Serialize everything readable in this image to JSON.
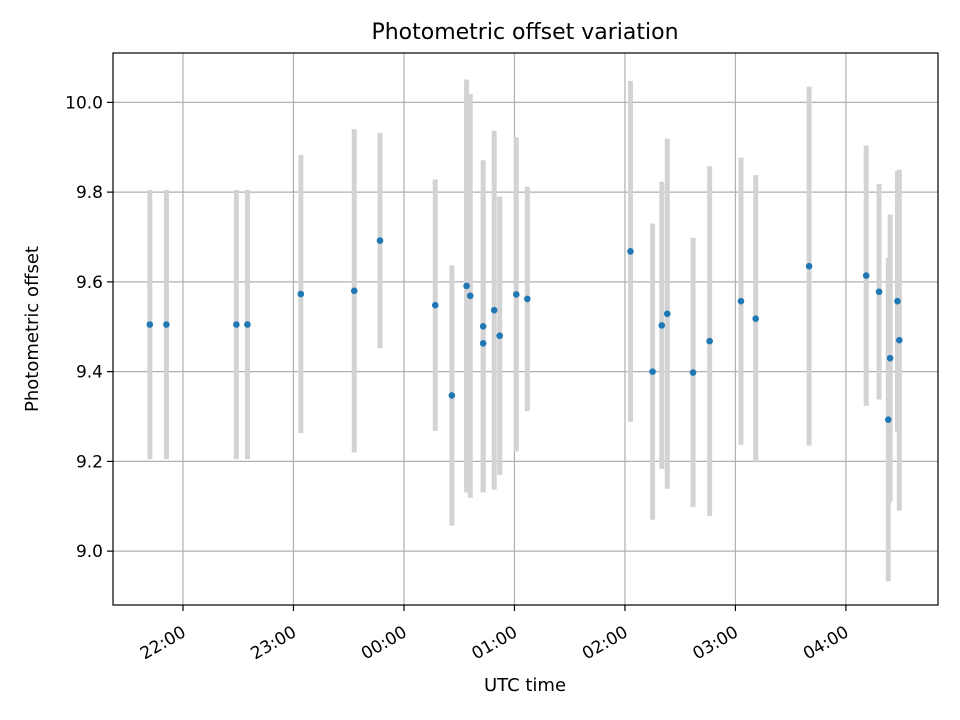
{
  "chart_data": {
    "type": "scatter",
    "title": "Photometric offset variation",
    "xlabel": "UTC time",
    "ylabel": "Photometric offset",
    "x_tick_labels": [
      "22:00",
      "23:00",
      "00:00",
      "01:00",
      "02:00",
      "03:00",
      "04:00"
    ],
    "y_tick_labels": [
      "9.0",
      "9.2",
      "9.4",
      "9.6",
      "9.8",
      "10.0"
    ],
    "y_ticks": [
      9.0,
      9.2,
      9.4,
      9.6,
      9.8,
      10.0
    ],
    "xlim": [
      "21:22",
      "04:50"
    ],
    "ylim": [
      8.88,
      10.11
    ],
    "grid": true,
    "marker_color": "#1f77b4",
    "errorbar_color": "#d3d3d3",
    "series": [
      {
        "points": [
          {
            "time": "21:42",
            "y": 9.505,
            "err": 0.3
          },
          {
            "time": "21:51",
            "y": 9.505,
            "err": 0.3
          },
          {
            "time": "22:29",
            "y": 9.505,
            "err": 0.3
          },
          {
            "time": "22:35",
            "y": 9.505,
            "err": 0.3
          },
          {
            "time": "23:04",
            "y": 9.573,
            "err": 0.31
          },
          {
            "time": "23:33",
            "y": 9.58,
            "err": 0.36
          },
          {
            "time": "23:47",
            "y": 9.692,
            "err": 0.24
          },
          {
            "time": "00:17",
            "y": 9.548,
            "err": 0.28
          },
          {
            "time": "00:26",
            "y": 9.347,
            "err": 0.29
          },
          {
            "time": "00:34",
            "y": 9.591,
            "err": 0.46
          },
          {
            "time": "00:36",
            "y": 9.569,
            "err": 0.45
          },
          {
            "time": "00:43",
            "y": 9.501,
            "err": 0.37
          },
          {
            "time": "00:43",
            "y": 9.463,
            "err": 0.33
          },
          {
            "time": "00:49",
            "y": 9.537,
            "err": 0.4
          },
          {
            "time": "00:52",
            "y": 9.48,
            "err": 0.31
          },
          {
            "time": "01:01",
            "y": 9.572,
            "err": 0.35
          },
          {
            "time": "01:07",
            "y": 9.562,
            "err": 0.25
          },
          {
            "time": "02:03",
            "y": 9.668,
            "err": 0.38
          },
          {
            "time": "02:15",
            "y": 9.4,
            "err": 0.33
          },
          {
            "time": "02:20",
            "y": 9.503,
            "err": 0.32
          },
          {
            "time": "02:23",
            "y": 9.529,
            "err": 0.39
          },
          {
            "time": "02:37",
            "y": 9.398,
            "err": 0.3
          },
          {
            "time": "02:46",
            "y": 9.468,
            "err": 0.39
          },
          {
            "time": "03:03",
            "y": 9.557,
            "err": 0.32
          },
          {
            "time": "03:11",
            "y": 9.518,
            "err": 0.32
          },
          {
            "time": "03:40",
            "y": 9.635,
            "err": 0.4
          },
          {
            "time": "04:11",
            "y": 9.614,
            "err": 0.29
          },
          {
            "time": "04:18",
            "y": 9.578,
            "err": 0.24
          },
          {
            "time": "04:23",
            "y": 9.293,
            "err": 0.36
          },
          {
            "time": "04:24",
            "y": 9.43,
            "err": 0.32
          },
          {
            "time": "04:28",
            "y": 9.557,
            "err": 0.29
          },
          {
            "time": "04:29",
            "y": 9.47,
            "err": 0.38
          }
        ]
      }
    ]
  }
}
